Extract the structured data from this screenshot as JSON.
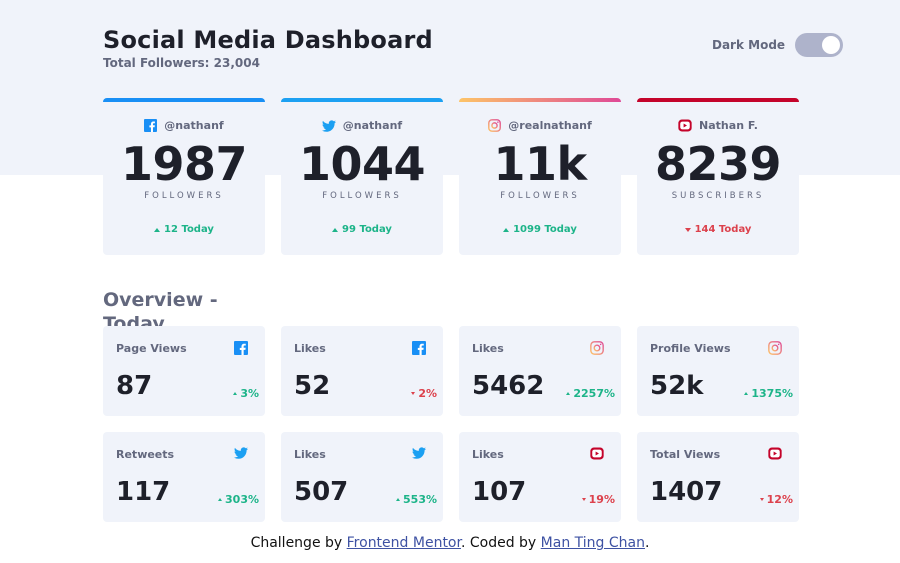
{
  "header": {
    "title": "Social Media Dashboard",
    "total_followers": "Total Followers: 23,004"
  },
  "dark_mode": {
    "label": "Dark Mode",
    "enabled": true
  },
  "colors": {
    "facebook": "#198ff5",
    "twitter": "#1ca0f2",
    "instagram_start": "#fdc468",
    "instagram_end": "#df4996",
    "youtube": "#c4032a",
    "up": "#1db489",
    "down": "#dc414c"
  },
  "cards": [
    {
      "platform": "facebook",
      "icon": "facebook-icon",
      "handle": "@nathanf",
      "count": "1987",
      "kind": "FOLLOWERS",
      "change": "12 Today",
      "trend": "up"
    },
    {
      "platform": "twitter",
      "icon": "twitter-icon",
      "handle": "@nathanf",
      "count": "1044",
      "kind": "FOLLOWERS",
      "change": "99 Today",
      "trend": "up"
    },
    {
      "platform": "instagram",
      "icon": "instagram-icon",
      "handle": "@realnathanf",
      "count": "11k",
      "kind": "FOLLOWERS",
      "change": "1099 Today",
      "trend": "up"
    },
    {
      "platform": "youtube",
      "icon": "youtube-icon",
      "handle": "Nathan F.",
      "count": "8239",
      "kind": "SUBSCRIBERS",
      "change": "144 Today",
      "trend": "down"
    }
  ],
  "overview": {
    "title": "Overview - Today",
    "items": [
      {
        "label": "Page Views",
        "icon": "facebook-icon",
        "value": "87",
        "change": "3%",
        "trend": "up"
      },
      {
        "label": "Likes",
        "icon": "facebook-icon",
        "value": "52",
        "change": "2%",
        "trend": "down"
      },
      {
        "label": "Likes",
        "icon": "instagram-icon",
        "value": "5462",
        "change": "2257%",
        "trend": "up"
      },
      {
        "label": "Profile Views",
        "icon": "instagram-icon",
        "value": "52k",
        "change": "1375%",
        "trend": "up"
      },
      {
        "label": "Retweets",
        "icon": "twitter-icon",
        "value": "117",
        "change": "303%",
        "trend": "up"
      },
      {
        "label": "Likes",
        "icon": "twitter-icon",
        "value": "507",
        "change": "553%",
        "trend": "up"
      },
      {
        "label": "Likes",
        "icon": "youtube-icon",
        "value": "107",
        "change": "19%",
        "trend": "down"
      },
      {
        "label": "Total Views",
        "icon": "youtube-icon",
        "value": "1407",
        "change": "12%",
        "trend": "down"
      }
    ]
  },
  "footer": {
    "prefix": "Challenge by ",
    "link1": "Frontend Mentor",
    "middle": ". Coded by ",
    "link2": "Man Ting Chan",
    "suffix": "."
  }
}
